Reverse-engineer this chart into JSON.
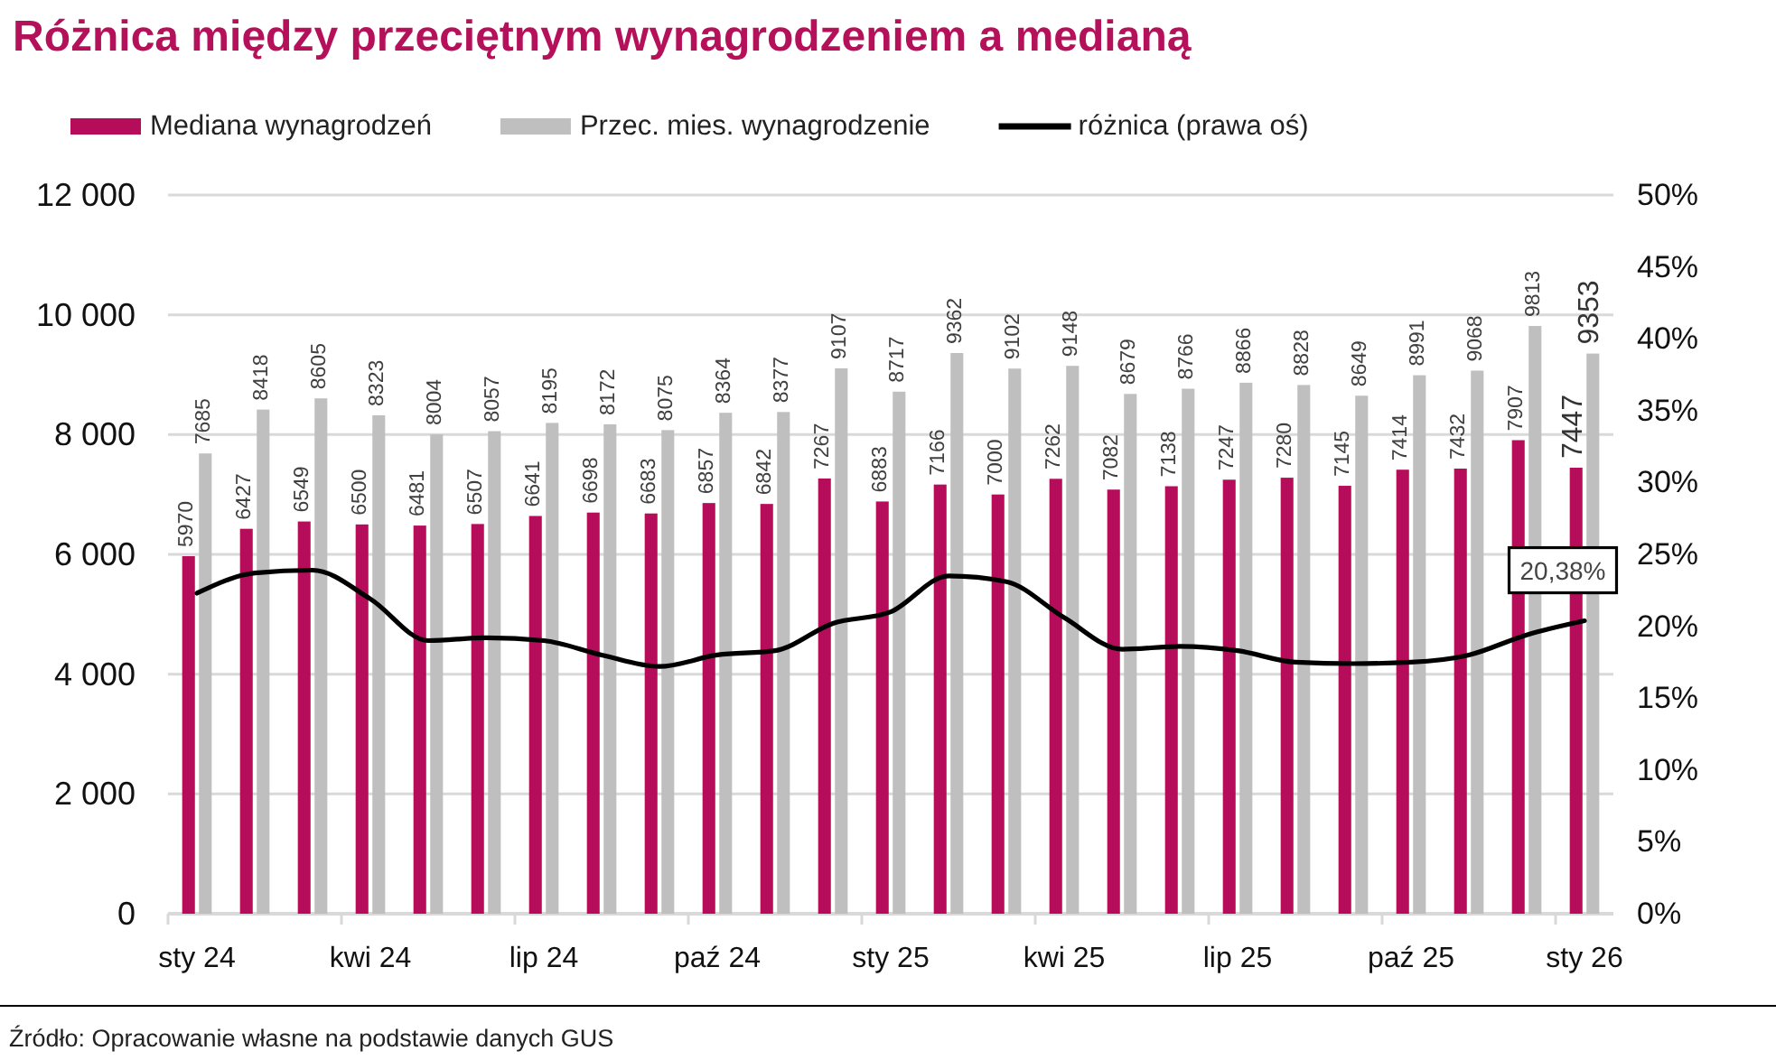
{
  "chart_data": {
    "type": "bar",
    "title": "Różnica między przeciętnym wynagrodzeniem a medianą",
    "categories": [
      "sty 24",
      null,
      null,
      "kwi 24",
      null,
      null,
      "lip 24",
      null,
      null,
      "paź 24",
      null,
      null,
      "sty 25",
      null,
      null,
      "kwi 25",
      null,
      null,
      "lip 25",
      null,
      null,
      "paź 25",
      null,
      null,
      "sty 26"
    ],
    "series": [
      {
        "name": "Mediana wynagrodzeń",
        "color": "#b50d5a",
        "values": [
          5970,
          6427,
          6549,
          6500,
          6481,
          6507,
          6641,
          6698,
          6683,
          6857,
          6842,
          7267,
          6883,
          7166,
          7000,
          7262,
          7082,
          7138,
          7247,
          7280,
          7145,
          7414,
          7432,
          7907,
          7447
        ],
        "value_labels": [
          "5970",
          "6427",
          "6549",
          "6500",
          "6481",
          "6507",
          "6641",
          "6698",
          "6683",
          "6857",
          "6842",
          "7267",
          "6883",
          "7166",
          "7000",
          "7262",
          "7082",
          "7138",
          "7247",
          "7280",
          "7145",
          "7414",
          "7432",
          "7907",
          "7447"
        ]
      },
      {
        "name": "Przec. mies. wynagrodzenie",
        "color": "#bfbfbf",
        "values": [
          7685,
          8418,
          8605,
          8323,
          8004,
          8057,
          8195,
          8172,
          8075,
          8364,
          8377,
          9107,
          8717,
          9362,
          9102,
          9148,
          8679,
          8766,
          8866,
          8828,
          8649,
          8991,
          9068,
          9813,
          9353
        ],
        "value_labels": [
          "7685",
          "8418",
          "8605",
          "8323",
          "8004",
          "8057",
          "8195",
          "8172",
          "8075",
          "8364",
          "8377",
          "9107",
          "8717",
          "9362",
          "9102",
          "9148",
          "8679",
          "8766",
          "8866",
          "8828",
          "8649",
          "8991",
          "9068",
          "9813",
          "9353"
        ]
      },
      {
        "name": "różnica (prawa oś)",
        "type": "line",
        "axis": "y2",
        "color": "#000000",
        "values": [
          22.3,
          23.7,
          23.9,
          21.9,
          19,
          19.2,
          19,
          18,
          17.2,
          18,
          18.3,
          20.2,
          21,
          23.5,
          23.1,
          20.6,
          18.4,
          18.6,
          18.3,
          17.5,
          17.4,
          17.5,
          18,
          19.4,
          20.38
        ],
        "value_labels": [
          null,
          null,
          null,
          null,
          null,
          null,
          null,
          null,
          null,
          null,
          null,
          null,
          null,
          null,
          null,
          null,
          null,
          null,
          null,
          null,
          null,
          null,
          null,
          null,
          "20,38%"
        ]
      }
    ],
    "ylim": [
      0,
      12000
    ],
    "yticks": [
      {
        "value": 0,
        "label": "0"
      },
      {
        "value": 2000,
        "label": "2 000"
      },
      {
        "value": 4000,
        "label": "4 000"
      },
      {
        "value": 6000,
        "label": "6 000"
      },
      {
        "value": 8000,
        "label": "8 000"
      },
      {
        "value": 10000,
        "label": "10 000"
      },
      {
        "value": 12000,
        "label": "12 000"
      }
    ],
    "y2lim": [
      0,
      50
    ],
    "y2ticks": [
      {
        "value": 0,
        "label": "0%"
      },
      {
        "value": 5,
        "label": "5%"
      },
      {
        "value": 10,
        "label": "10%"
      },
      {
        "value": 15,
        "label": "15%"
      },
      {
        "value": 20,
        "label": "20%"
      },
      {
        "value": 25,
        "label": "25%"
      },
      {
        "value": 30,
        "label": "30%"
      },
      {
        "value": 35,
        "label": "35%"
      },
      {
        "value": 40,
        "label": "40%"
      },
      {
        "value": 45,
        "label": "45%"
      },
      {
        "value": 50,
        "label": "50%"
      }
    ],
    "grid": "y",
    "legend": "top",
    "annotations": [
      "Źródło: Opracowanie własne na podstawie danych GUS"
    ]
  }
}
